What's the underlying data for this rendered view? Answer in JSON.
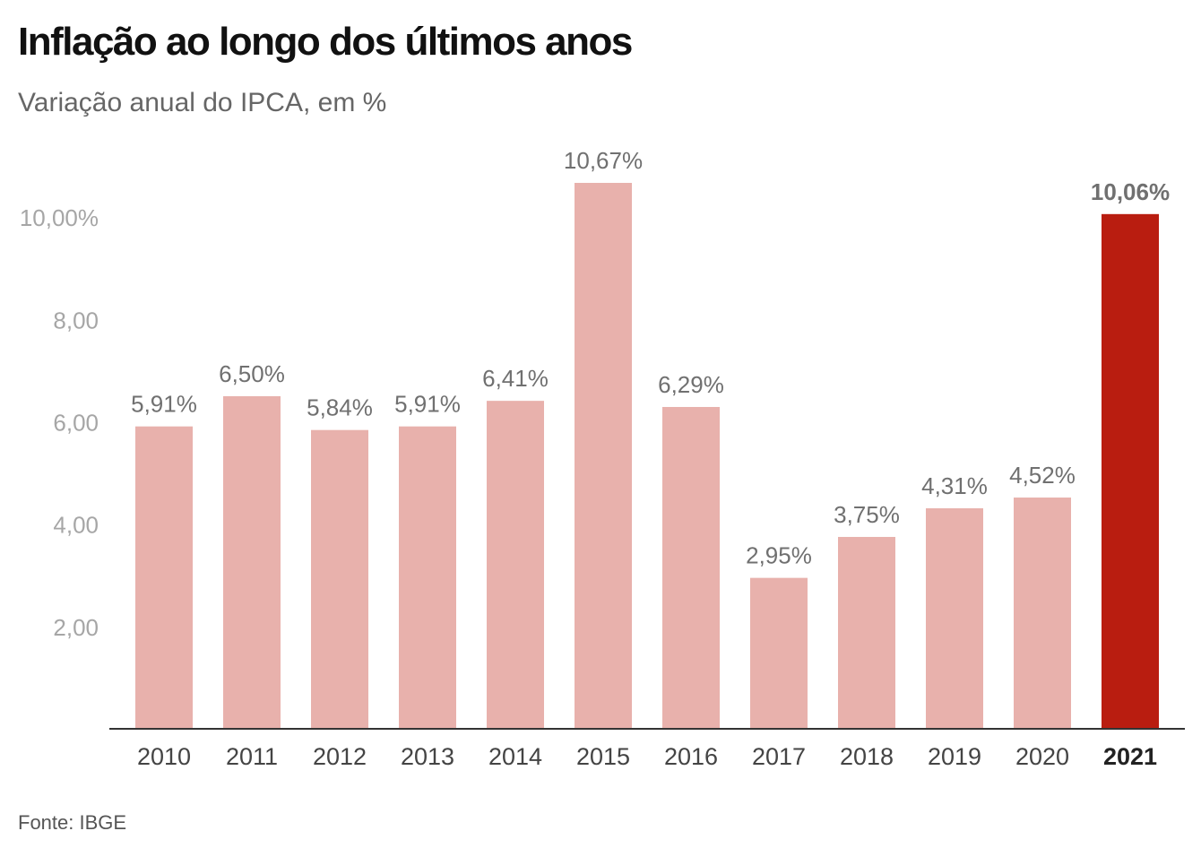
{
  "title": "Inflação ao longo dos últimos anos",
  "subtitle": "Variação anual do IPCA, em %",
  "source": "Fonte: IBGE",
  "colors": {
    "bar": "#e8b1ac",
    "highlight": "#b91d10",
    "tick_label": "#a6a6a6",
    "data_label": "#707070",
    "axis": "#333333"
  },
  "chart_data": {
    "type": "bar",
    "categories": [
      "2010",
      "2011",
      "2012",
      "2013",
      "2014",
      "2015",
      "2016",
      "2017",
      "2018",
      "2019",
      "2020",
      "2021"
    ],
    "values": [
      5.91,
      6.5,
      5.84,
      5.91,
      6.41,
      10.67,
      6.29,
      2.95,
      3.75,
      4.31,
      4.52,
      10.06
    ],
    "data_labels": [
      "5,91%",
      "6,50%",
      "5,84%",
      "5,91%",
      "6,41%",
      "10,67%",
      "6,29%",
      "2,95%",
      "3,75%",
      "4,31%",
      "4,52%",
      "10,06%"
    ],
    "highlight_index": 11,
    "yticks": [
      2,
      4,
      6,
      8,
      10
    ],
    "ytick_labels": [
      "2,00",
      "4,00",
      "6,00",
      "8,00",
      "10,00%"
    ],
    "ylim": [
      0,
      10.67
    ],
    "grid": false,
    "legend": "none"
  }
}
